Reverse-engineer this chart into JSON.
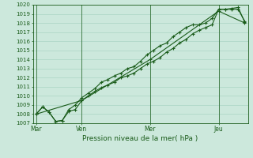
{
  "xlabel": "Pression niveau de la mer( hPa )",
  "bg_color": "#cce8dc",
  "grid_color": "#aad4c4",
  "line_color": "#1a5c1a",
  "ylim": [
    1007,
    1020
  ],
  "day_labels": [
    "Mar",
    "Ven",
    "Mer",
    "Jeu"
  ],
  "day_positions": [
    0,
    56,
    140,
    224
  ],
  "line1_x": [
    0,
    8,
    16,
    24,
    32,
    40,
    48,
    56,
    64,
    72,
    80,
    88,
    96,
    104,
    112,
    120,
    128,
    136,
    144,
    152,
    160,
    168,
    176,
    184,
    192,
    200,
    208,
    216,
    224,
    232,
    240,
    248,
    256
  ],
  "line1_y": [
    1008.0,
    1008.8,
    1008.2,
    1007.2,
    1007.3,
    1008.3,
    1008.5,
    1009.5,
    1010.0,
    1010.5,
    1010.9,
    1011.2,
    1011.5,
    1012.0,
    1012.2,
    1012.5,
    1013.0,
    1013.5,
    1013.8,
    1014.2,
    1014.8,
    1015.2,
    1015.8,
    1016.2,
    1016.8,
    1017.2,
    1017.5,
    1017.8,
    1019.5,
    1019.5,
    1019.6,
    1019.7,
    1018.1
  ],
  "line2_x": [
    0,
    8,
    16,
    24,
    32,
    40,
    48,
    56,
    64,
    72,
    80,
    88,
    96,
    104,
    112,
    120,
    128,
    136,
    144,
    152,
    160,
    168,
    176,
    184,
    192,
    200,
    208,
    216,
    224,
    232,
    240,
    248,
    256
  ],
  "line2_y": [
    1008.0,
    1008.8,
    1008.2,
    1007.2,
    1007.3,
    1008.5,
    1009.0,
    1009.8,
    1010.3,
    1010.8,
    1011.5,
    1011.8,
    1012.2,
    1012.5,
    1013.0,
    1013.2,
    1013.8,
    1014.5,
    1015.0,
    1015.5,
    1015.8,
    1016.5,
    1017.0,
    1017.5,
    1017.8,
    1017.8,
    1018.0,
    1018.5,
    1019.5,
    1019.5,
    1019.5,
    1019.5,
    1018.2
  ],
  "line3_x": [
    0,
    56,
    140,
    224,
    256
  ],
  "line3_y": [
    1008.0,
    1009.5,
    1014.0,
    1019.3,
    1018.0
  ]
}
